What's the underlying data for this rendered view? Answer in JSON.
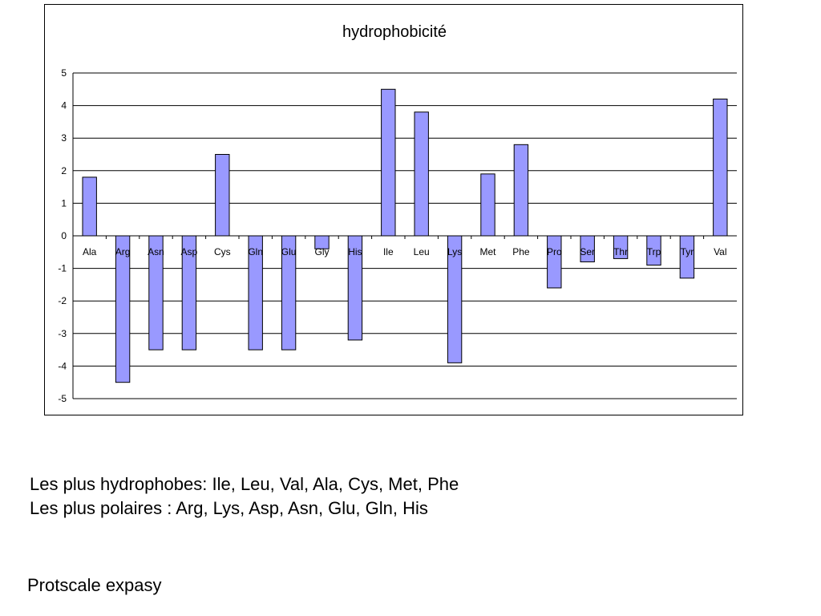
{
  "chart_data": {
    "type": "bar",
    "title": "hydrophobicité",
    "xlabel": "",
    "ylabel": "",
    "categories": [
      "Ala",
      "Arg",
      "Asn",
      "Asp",
      "Cys",
      "Gln",
      "Glu",
      "Gly",
      "His",
      "Ile",
      "Leu",
      "Lys",
      "Met",
      "Phe",
      "Pro",
      "Ser",
      "Thr",
      "Trp",
      "Tyr",
      "Val"
    ],
    "values": [
      1.8,
      -4.5,
      -3.5,
      -3.5,
      2.5,
      -3.5,
      -3.5,
      -0.4,
      -3.2,
      4.5,
      3.8,
      -3.9,
      1.9,
      2.8,
      -1.6,
      -0.8,
      -0.7,
      -0.9,
      -1.3,
      4.2
    ],
    "ylim": [
      -5,
      5
    ],
    "yticks": [
      "5",
      "4",
      "3",
      "2",
      "1",
      "0",
      "-1",
      "-2",
      "-3",
      "-4",
      "-5"
    ],
    "grid": true,
    "legend": "none",
    "colors": {
      "bar_fill": "#9999ff",
      "bar_stroke": "#000000",
      "grid": "#000000",
      "background": "#ffffff"
    }
  },
  "caption": {
    "line1": "Les plus hydrophobes: Ile, Leu, Val, Ala, Cys, Met, Phe",
    "line2": "Les plus polaires : Arg, Lys, Asp, Asn, Glu, Gln, His"
  },
  "source": "Protscale expasy"
}
